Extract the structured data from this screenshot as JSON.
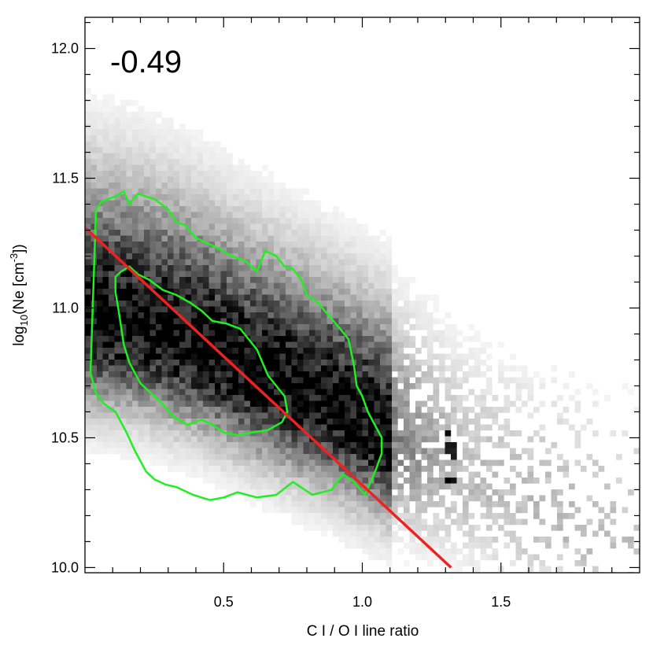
{
  "chart_data": {
    "type": "heatmap",
    "xlabel": "C I / O I line ratio",
    "ylabel": {
      "base": "log",
      "sub": "10",
      "mid": "(Ne [cm",
      "sup": "-3",
      "end": "])"
    },
    "annotation": "-0.49",
    "xlim": [
      0.0,
      2.0
    ],
    "ylim": [
      9.98,
      12.12
    ],
    "x_ticks": [
      {
        "value": 0.5,
        "label": "0.5"
      },
      {
        "value": 1.0,
        "label": "1.0"
      },
      {
        "value": 1.5,
        "label": "1.5"
      }
    ],
    "y_ticks": [
      {
        "value": 10.0,
        "label": "10.0"
      },
      {
        "value": 10.5,
        "label": "10.5"
      },
      {
        "value": 11.0,
        "label": "11.0"
      },
      {
        "value": 11.5,
        "label": "11.5"
      },
      {
        "value": 12.0,
        "label": "12.0"
      }
    ],
    "x_minor_step": 0.1,
    "y_minor_step": 0.1,
    "grid": false,
    "density_ridge": [
      [
        0.0,
        10.95
      ],
      [
        0.2,
        10.92
      ],
      [
        0.4,
        10.85
      ],
      [
        0.6,
        10.75
      ],
      [
        0.8,
        10.66
      ],
      [
        1.0,
        10.56
      ],
      [
        1.2,
        10.45
      ],
      [
        1.4,
        10.33
      ],
      [
        1.6,
        10.24
      ],
      [
        1.8,
        10.16
      ],
      [
        2.0,
        10.1
      ]
    ],
    "fit_line": {
      "color": "#ee2222",
      "points": [
        [
          0.0,
          11.31
        ],
        [
          1.32,
          10.0
        ]
      ]
    },
    "contours": {
      "color": "#22ee22",
      "outer": [
        [
          0.04,
          11.38
        ],
        [
          0.06,
          11.41
        ],
        [
          0.11,
          11.43
        ],
        [
          0.14,
          11.45
        ],
        [
          0.16,
          11.4
        ],
        [
          0.19,
          11.44
        ],
        [
          0.25,
          11.42
        ],
        [
          0.3,
          11.38
        ],
        [
          0.33,
          11.33
        ],
        [
          0.36,
          11.32
        ],
        [
          0.4,
          11.27
        ],
        [
          0.44,
          11.25
        ],
        [
          0.48,
          11.23
        ],
        [
          0.53,
          11.2
        ],
        [
          0.58,
          11.18
        ],
        [
          0.62,
          11.14
        ],
        [
          0.65,
          11.22
        ],
        [
          0.69,
          11.2
        ],
        [
          0.72,
          11.16
        ],
        [
          0.75,
          11.15
        ],
        [
          0.78,
          11.11
        ],
        [
          0.8,
          11.05
        ],
        [
          0.84,
          11.02
        ],
        [
          0.88,
          10.97
        ],
        [
          0.92,
          10.92
        ],
        [
          0.95,
          10.88
        ],
        [
          0.97,
          10.78
        ],
        [
          0.98,
          10.7
        ],
        [
          1.0,
          10.66
        ],
        [
          1.02,
          10.6
        ],
        [
          1.04,
          10.56
        ],
        [
          1.07,
          10.5
        ],
        [
          1.07,
          10.44
        ],
        [
          1.05,
          10.38
        ],
        [
          1.03,
          10.33
        ],
        [
          1.01,
          10.28
        ],
        [
          0.97,
          10.33
        ],
        [
          0.93,
          10.36
        ],
        [
          0.89,
          10.3
        ],
        [
          0.82,
          10.28
        ],
        [
          0.75,
          10.33
        ],
        [
          0.69,
          10.28
        ],
        [
          0.62,
          10.27
        ],
        [
          0.55,
          10.29
        ],
        [
          0.5,
          10.27
        ],
        [
          0.45,
          10.26
        ],
        [
          0.39,
          10.28
        ],
        [
          0.33,
          10.31
        ],
        [
          0.29,
          10.32
        ],
        [
          0.25,
          10.34
        ],
        [
          0.22,
          10.37
        ],
        [
          0.18,
          10.45
        ],
        [
          0.15,
          10.52
        ],
        [
          0.11,
          10.6
        ],
        [
          0.07,
          10.63
        ],
        [
          0.04,
          10.67
        ],
        [
          0.02,
          10.75
        ]
      ],
      "inner": [
        [
          0.11,
          11.12
        ],
        [
          0.13,
          11.14
        ],
        [
          0.16,
          11.16
        ],
        [
          0.19,
          11.13
        ],
        [
          0.23,
          11.11
        ],
        [
          0.28,
          11.07
        ],
        [
          0.33,
          11.05
        ],
        [
          0.38,
          11.02
        ],
        [
          0.42,
          10.99
        ],
        [
          0.46,
          10.95
        ],
        [
          0.51,
          10.94
        ],
        [
          0.56,
          10.92
        ],
        [
          0.59,
          10.88
        ],
        [
          0.62,
          10.84
        ],
        [
          0.64,
          10.79
        ],
        [
          0.66,
          10.74
        ],
        [
          0.69,
          10.7
        ],
        [
          0.72,
          10.66
        ],
        [
          0.73,
          10.6
        ],
        [
          0.71,
          10.56
        ],
        [
          0.66,
          10.53
        ],
        [
          0.6,
          10.52
        ],
        [
          0.55,
          10.51
        ],
        [
          0.5,
          10.52
        ],
        [
          0.46,
          10.55
        ],
        [
          0.42,
          10.57
        ],
        [
          0.37,
          10.55
        ],
        [
          0.32,
          10.58
        ],
        [
          0.28,
          10.63
        ],
        [
          0.24,
          10.67
        ],
        [
          0.2,
          10.71
        ],
        [
          0.16,
          10.79
        ],
        [
          0.14,
          10.86
        ],
        [
          0.13,
          10.93
        ],
        [
          0.12,
          11.0
        ],
        [
          0.11,
          11.06
        ]
      ]
    }
  }
}
